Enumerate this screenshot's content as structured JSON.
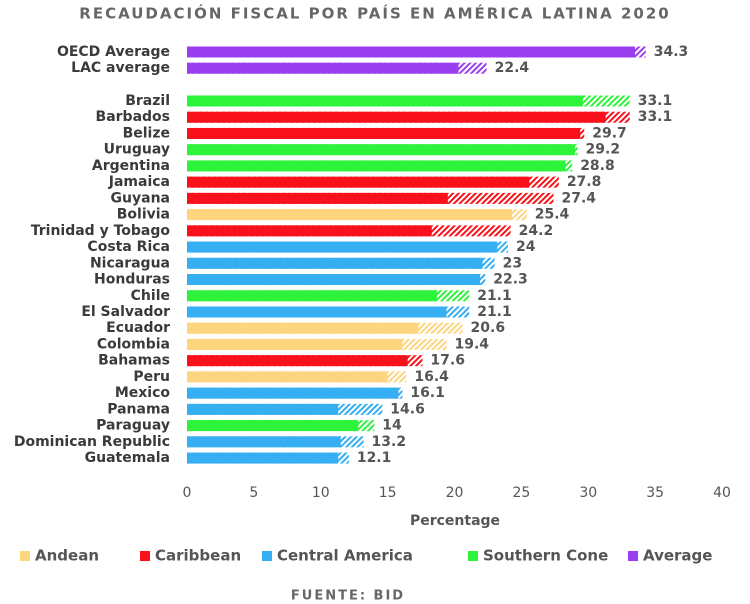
{
  "chart_data": {
    "type": "bar",
    "orientation": "horizontal",
    "title": "RECAUDACIÓN FISCAL POR PAÍS EN AMÉRICA LATINA 2020",
    "x_label": "Percentage",
    "source": "FUENTE: BID",
    "categories": [
      "OECD Average",
      "LAC average",
      "Brazil",
      "Barbados",
      "Belize",
      "Uruguay",
      "Argentina",
      "Jamaica",
      "Guyana",
      "Bolivia",
      "Trinidad y Tobago",
      "Costa Rica",
      "Nicaragua",
      "Honduras",
      "Chile",
      "El Salvador",
      "Ecuador",
      "Colombia",
      "Bahamas",
      "Peru",
      "Mexico",
      "Panama",
      "Paraguay",
      "Dominican Republic",
      "Guatemala"
    ],
    "category_groups": [
      "Average",
      "Average",
      "Southern Cone",
      "Caribbean",
      "Caribbean",
      "Southern Cone",
      "Southern Cone",
      "Caribbean",
      "Caribbean",
      "Andean",
      "Caribbean",
      "Central America",
      "Central America",
      "Central America",
      "Southern Cone",
      "Central America",
      "Andean",
      "Andean",
      "Caribbean",
      "Andean",
      "Central America",
      "Central America",
      "Southern Cone",
      "Central America",
      "Central America"
    ],
    "values": [
      34.3,
      22.4,
      33.1,
      33.1,
      29.7,
      29.2,
      28.8,
      27.8,
      27.4,
      25.4,
      24.2,
      24,
      23,
      22.3,
      21.1,
      21.1,
      20.6,
      19.4,
      17.6,
      16.4,
      16.1,
      14.6,
      14,
      13.2,
      12.1
    ],
    "solid_values": [
      33.5,
      20.3,
      29.6,
      31.3,
      29.4,
      29.0,
      28.3,
      25.6,
      19.5,
      24.3,
      18.3,
      23.2,
      22.1,
      21.9,
      18.7,
      19.4,
      17.3,
      16.1,
      16.5,
      15.0,
      15.8,
      11.3,
      12.8,
      11.5,
      11.3
    ],
    "groups": [
      {
        "name": "Andean",
        "color": "#fdd57e"
      },
      {
        "name": "Caribbean",
        "color": "#f8111b"
      },
      {
        "name": "Central America",
        "color": "#35aef2"
      },
      {
        "name": "Southern Cone",
        "color": "#2df33a"
      },
      {
        "name": "Average",
        "color": "#9a3ff0"
      }
    ],
    "xlim": [
      0,
      40
    ],
    "xticks": [
      0,
      5,
      10,
      15,
      20,
      25,
      30,
      35,
      40
    ]
  }
}
